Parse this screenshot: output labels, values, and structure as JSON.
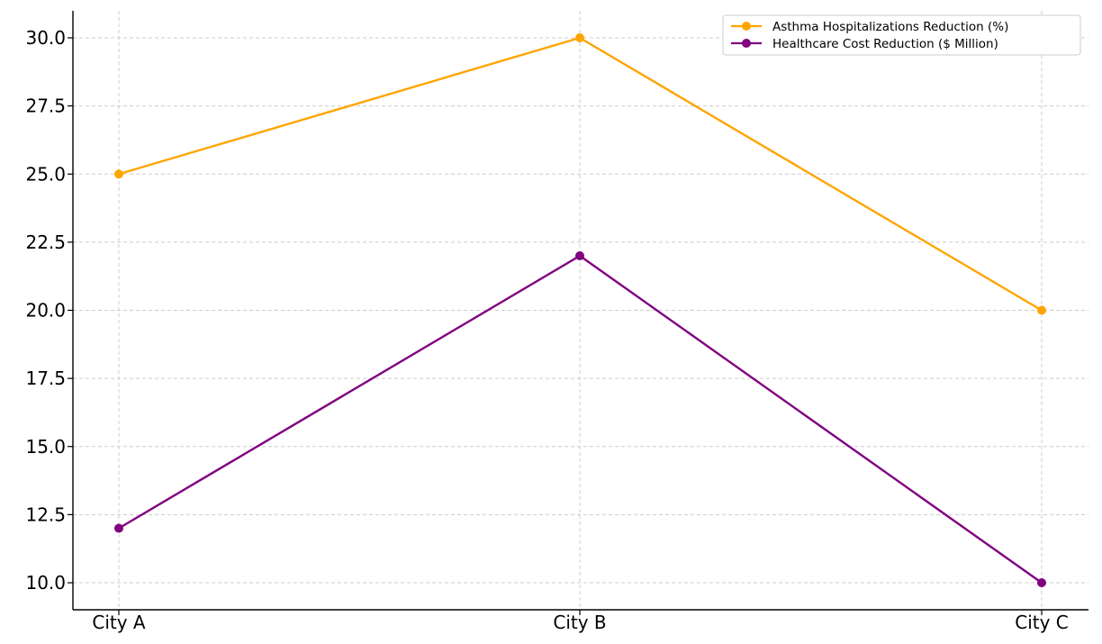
{
  "chart_data": {
    "type": "line",
    "categories": [
      "City A",
      "City B",
      "City C"
    ],
    "series": [
      {
        "name": "Asthma Hospitalizations Reduction (%)",
        "values": [
          25,
          30,
          20
        ],
        "color": "#FFA500"
      },
      {
        "name": "Healthcare Cost Reduction ($ Million)",
        "values": [
          12,
          22,
          10
        ],
        "color": "#800080"
      }
    ],
    "y_ticks": [
      "10.0",
      "12.5",
      "15.0",
      "17.5",
      "20.0",
      "22.5",
      "25.0",
      "27.5",
      "30.0"
    ],
    "ylim": [
      9.0,
      31.0
    ],
    "grid": true,
    "legend_position": "top-right",
    "markers": "circle"
  }
}
